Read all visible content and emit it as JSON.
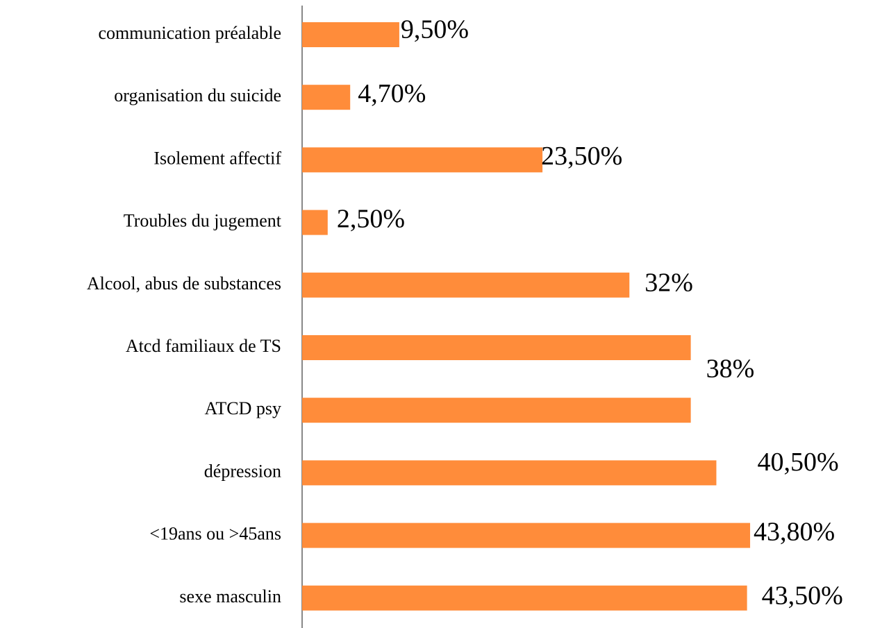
{
  "chart_data": {
    "type": "barh",
    "categories": [
      "communication préalable",
      "organisation du suicide",
      "Isolement affectif",
      "Troubles du jugement",
      "Alcool, abus de substances",
      "Atcd familiaux de TS",
      "ATCD psy",
      "dépression",
      "<19ans ou >45ans",
      "sexe masculin"
    ],
    "values": [
      9.5,
      4.7,
      23.5,
      2.5,
      32,
      38,
      38,
      40.5,
      43.8,
      43.5
    ],
    "value_labels": [
      "9,50%",
      "4,70%",
      "23,50%",
      "2,50%",
      "32%",
      "38%",
      null,
      "40,50%",
      "43,80%",
      "43,50%"
    ],
    "color": "#ff8c3a",
    "xlim": [
      0,
      55
    ]
  }
}
